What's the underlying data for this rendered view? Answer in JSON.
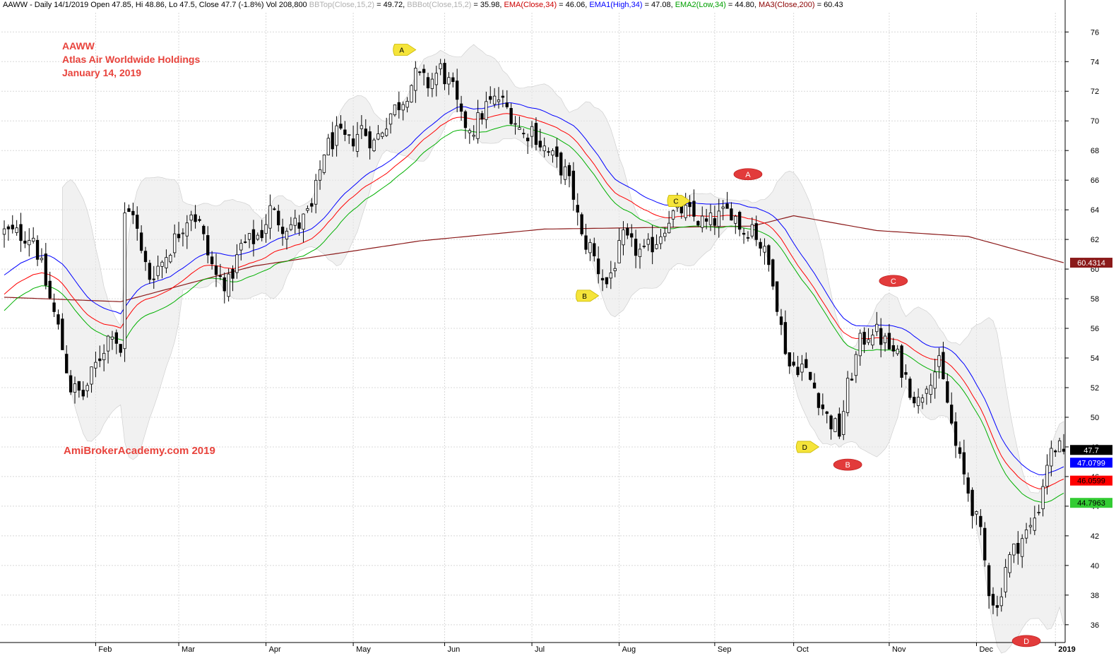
{
  "header": {
    "symbol": "AAWW",
    "info": " - Daily 14/1/2019 Open 47.85, Hi 48.86, Lo 47.5, Close 47.7 (-1.8%) Vol 208,800 ",
    "bbtop_label": "BBTop(Close,15,2)",
    "bbtop_value": " = 49.72, ",
    "bbbot_label": "BBBot(Close,15,2)",
    "bbbot_value": " = 35.98, ",
    "ema_label": "EMA(Close,34)",
    "ema_value": " = 46.06, ",
    "ema1_label": "EMA1(High,34)",
    "ema1_value": " = 47.08, ",
    "ema2_label": "EMA2(Low,34)",
    "ema2_value": " = 44.80, ",
    "ma3_label": "MA3(Close,200)",
    "ma3_value": " = 60.43"
  },
  "title_block": {
    "line1": "AAWW",
    "line2": "Atlas Air Worldwide Holdings",
    "line3": "January 14, 2019"
  },
  "watermark": "AmiBrokerAcademy.com  2019",
  "colors": {
    "ema1": "#0000ff",
    "ema": "#ff0000",
    "ema2": "#00b000",
    "ma200": "#8b1a1a",
    "band": "#e8e8e8",
    "candle": "#000000",
    "label_red": "#e23b3b",
    "label_yellow": "#f5e43a"
  },
  "chart_data": {
    "type": "candlestick",
    "y_ticks": [
      36,
      38,
      40,
      42,
      44,
      46,
      48,
      50,
      52,
      54,
      56,
      58,
      60,
      62,
      64,
      66,
      68,
      70,
      72,
      74,
      76
    ],
    "ylim": [
      34.8,
      77.3
    ],
    "x_labels": [
      {
        "label": "Feb",
        "day": 22
      },
      {
        "label": "Mar",
        "day": 42
      },
      {
        "label": "Apr",
        "day": 63
      },
      {
        "label": "May",
        "day": 84
      },
      {
        "label": "Jun",
        "day": 106
      },
      {
        "label": "Jul",
        "day": 127
      },
      {
        "label": "Aug",
        "day": 148
      },
      {
        "label": "Sep",
        "day": 171
      },
      {
        "label": "Oct",
        "day": 190
      },
      {
        "label": "Nov",
        "day": 213
      },
      {
        "label": "Dec",
        "day": 234
      },
      {
        "label": "2019",
        "day": 253
      }
    ],
    "n_days": 256,
    "price_keyframes": [
      [
        0,
        62.5
      ],
      [
        7,
        62.2
      ],
      [
        10,
        59
      ],
      [
        13,
        56
      ],
      [
        16,
        52
      ],
      [
        19,
        51.5
      ],
      [
        22,
        53.5
      ],
      [
        26,
        56
      ],
      [
        28,
        54.5
      ],
      [
        29,
        63.5
      ],
      [
        31,
        64
      ],
      [
        33,
        61
      ],
      [
        35,
        59.5
      ],
      [
        38,
        60.5
      ],
      [
        42,
        62.5
      ],
      [
        45,
        64
      ],
      [
        47,
        63
      ],
      [
        49,
        61
      ],
      [
        51,
        59.5
      ],
      [
        54,
        59
      ],
      [
        57,
        61.5
      ],
      [
        60,
        62
      ],
      [
        62,
        62.5
      ],
      [
        64,
        64
      ],
      [
        67,
        63
      ],
      [
        71,
        63
      ],
      [
        74,
        64
      ],
      [
        77,
        68
      ],
      [
        80,
        69
      ],
      [
        83,
        68.5
      ],
      [
        86,
        69.5
      ],
      [
        89,
        68.5
      ],
      [
        93,
        70.5
      ],
      [
        96,
        71.5
      ],
      [
        99,
        73
      ],
      [
        102,
        72.5
      ],
      [
        105,
        73.5
      ],
      [
        108,
        72
      ],
      [
        110,
        70
      ],
      [
        113,
        69.5
      ],
      [
        116,
        71
      ],
      [
        119,
        71.5
      ],
      [
        122,
        70.5
      ],
      [
        125,
        69
      ],
      [
        127,
        69.5
      ],
      [
        129,
        68.5
      ],
      [
        132,
        67.5
      ],
      [
        135,
        66.5
      ],
      [
        137,
        65
      ],
      [
        139,
        62
      ],
      [
        141,
        61.5
      ],
      [
        143,
        60
      ],
      [
        145,
        59
      ],
      [
        147,
        60.5
      ],
      [
        149,
        62
      ],
      [
        151,
        61.5
      ],
      [
        154,
        61
      ],
      [
        157,
        62
      ],
      [
        160,
        63.5
      ],
      [
        163,
        64
      ],
      [
        166,
        63.5
      ],
      [
        169,
        63
      ],
      [
        172,
        63.5
      ],
      [
        175,
        64
      ],
      [
        178,
        62.5
      ],
      [
        180,
        63
      ],
      [
        183,
        61
      ],
      [
        185,
        59.5
      ],
      [
        187,
        56
      ],
      [
        189,
        53.5
      ],
      [
        192,
        53.5
      ],
      [
        195,
        52
      ],
      [
        198,
        50
      ],
      [
        201,
        49
      ],
      [
        203,
        52
      ],
      [
        206,
        55
      ],
      [
        209,
        56
      ],
      [
        212,
        55
      ],
      [
        215,
        54
      ],
      [
        218,
        52
      ],
      [
        220,
        51
      ],
      [
        222,
        52.5
      ],
      [
        225,
        53.5
      ],
      [
        227,
        51
      ],
      [
        229,
        48
      ],
      [
        231,
        46
      ],
      [
        233,
        44
      ],
      [
        235,
        42
      ],
      [
        237,
        38.5
      ],
      [
        239,
        37
      ],
      [
        241,
        40
      ],
      [
        244,
        41.5
      ],
      [
        247,
        42.5
      ],
      [
        249,
        44
      ],
      [
        251,
        47
      ],
      [
        253,
        48
      ],
      [
        255,
        47.7
      ]
    ],
    "ma200_keyframes": [
      [
        0,
        58.1
      ],
      [
        28,
        57.8
      ],
      [
        60,
        60.2
      ],
      [
        100,
        61.9
      ],
      [
        130,
        62.7
      ],
      [
        180,
        62.9
      ],
      [
        190,
        63.6
      ],
      [
        210,
        62.6
      ],
      [
        232,
        62.2
      ],
      [
        245,
        61.2
      ],
      [
        255,
        60.43
      ]
    ],
    "last_values": {
      "ma200": "60.4314",
      "close": "47.7",
      "ema1": "47.0799",
      "ema": "46.0599",
      "ema2": "44.7963"
    },
    "wave_labels": [
      {
        "text": "A",
        "style": "yellow",
        "day": 96,
        "price": 74.8
      },
      {
        "text": "B",
        "style": "yellow",
        "day": 140,
        "price": 58.2
      },
      {
        "text": "C",
        "style": "yellow",
        "day": 162,
        "price": 64.6
      },
      {
        "text": "D",
        "style": "yellow",
        "day": 193,
        "price": 48.0
      },
      {
        "text": "A",
        "style": "red",
        "day": 179,
        "price": 66.4
      },
      {
        "text": "B",
        "style": "red",
        "day": 203,
        "price": 46.8
      },
      {
        "text": "C",
        "style": "red",
        "day": 214,
        "price": 59.2
      },
      {
        "text": "D",
        "style": "red",
        "day": 246,
        "price": 34.9
      }
    ]
  }
}
